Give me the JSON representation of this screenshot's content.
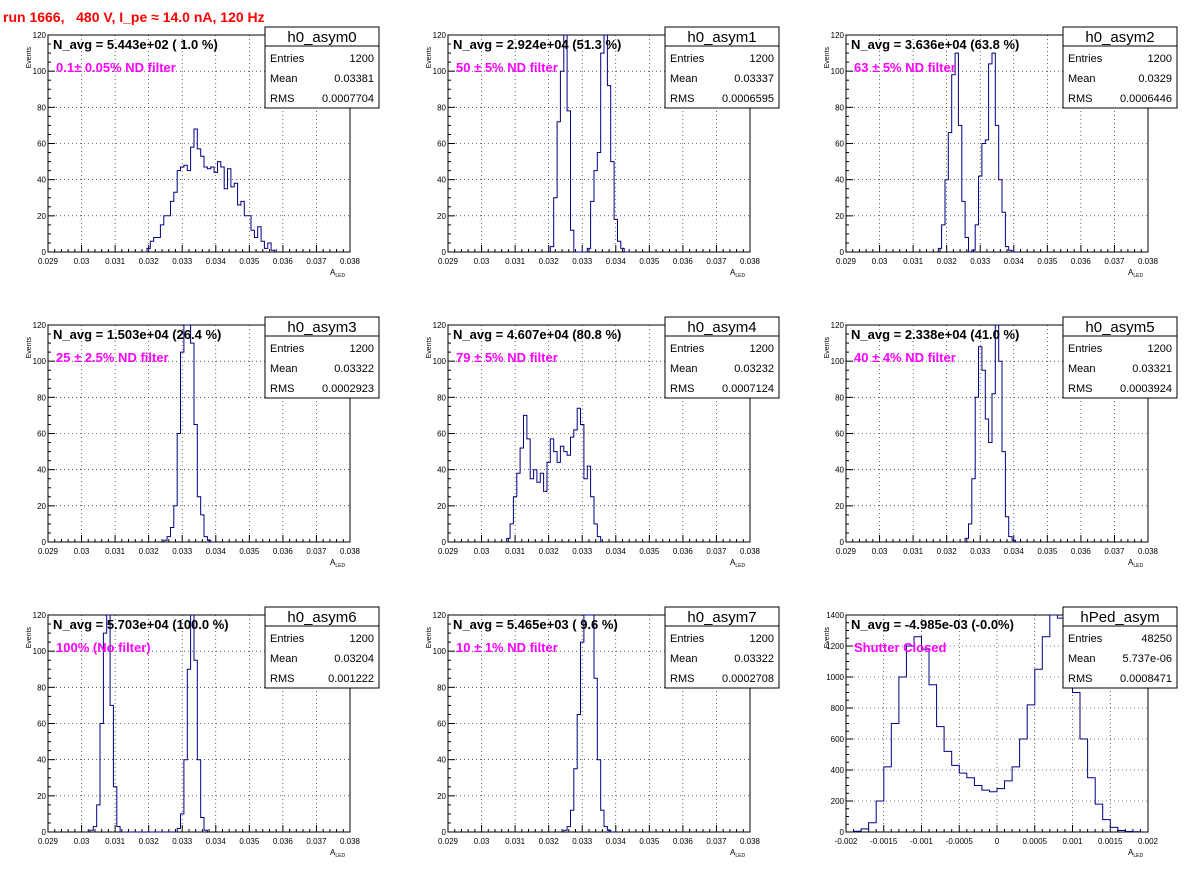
{
  "header": {
    "title": "run 1666,   480 V, I_pe ≈ 14.0 nA, 120 Hz"
  },
  "colors": {
    "title": "#ff0000",
    "filter_label": "#ff00ff",
    "histogram_line": "#000080",
    "axis": "#000000"
  },
  "chart_data": [
    {
      "type": "histogram",
      "name": "h0_asym0",
      "stats": {
        "Entries": "1200",
        "Mean": "0.03381",
        "RMS": "0.0007704"
      },
      "navg_label": "N_avg = 5.443e+02 ( 1.0 %)",
      "filter_label": "0.1± 0.05% ND filter",
      "xlabel": "A_LED",
      "ylabel": "Events",
      "xlim": [
        0.029,
        0.038
      ],
      "ylim": [
        0,
        120
      ],
      "xticks": [
        "0.029",
        "0.03",
        "0.031",
        "0.032",
        "0.033",
        "0.034",
        "0.035",
        "0.036",
        "0.037",
        "0.038"
      ],
      "yticks": [
        "0",
        "20",
        "40",
        "60",
        "80",
        "100",
        "120"
      ],
      "x": [
        0.032,
        0.0321,
        0.0322,
        0.0323,
        0.0324,
        0.0325,
        0.0326,
        0.0327,
        0.0328,
        0.0329,
        0.033,
        0.0331,
        0.0332,
        0.0333,
        0.0334,
        0.0335,
        0.0336,
        0.0337,
        0.0338,
        0.0339,
        0.034,
        0.0341,
        0.0342,
        0.0343,
        0.0344,
        0.0345,
        0.0346,
        0.0347,
        0.0348,
        0.0349,
        0.035,
        0.0351,
        0.0352,
        0.0353,
        0.0354,
        0.0355,
        0.0356,
        0.0357
      ],
      "y": [
        2,
        6,
        8,
        8,
        15,
        20,
        20,
        28,
        33,
        45,
        47,
        48,
        45,
        58,
        68,
        57,
        53,
        47,
        46,
        47,
        44,
        50,
        47,
        35,
        46,
        36,
        38,
        26,
        28,
        20,
        20,
        12,
        8,
        14,
        6,
        2,
        5,
        1
      ]
    },
    {
      "type": "histogram",
      "name": "h0_asym1",
      "stats": {
        "Entries": "1200",
        "Mean": "0.03337",
        "RMS": "0.0006595"
      },
      "navg_label": "N_avg = 2.924e+04 (51.3 %)",
      "filter_label": "50 ± 5% ND filter",
      "xlabel": "A_LED",
      "ylabel": "Events",
      "xlim": [
        0.029,
        0.038
      ],
      "ylim": [
        0,
        120
      ],
      "xticks": [
        "0.029",
        "0.03",
        "0.031",
        "0.032",
        "0.033",
        "0.034",
        "0.035",
        "0.036",
        "0.037",
        "0.038"
      ],
      "yticks": [
        "0",
        "20",
        "40",
        "60",
        "80",
        "100",
        "120"
      ],
      "x": [
        0.0321,
        0.0322,
        0.0323,
        0.0324,
        0.0325,
        0.0326,
        0.0327,
        0.0328,
        0.0329,
        0.033,
        0.0331,
        0.0332,
        0.0333,
        0.0334,
        0.0335,
        0.0336,
        0.0337,
        0.0338,
        0.0339,
        0.034,
        0.0341,
        0.0342,
        0.0343,
        0.0344
      ],
      "y": [
        3,
        30,
        72,
        100,
        125,
        78,
        12,
        0,
        0,
        0,
        0,
        2,
        28,
        45,
        55,
        110,
        125,
        92,
        50,
        18,
        6,
        2,
        0,
        0
      ]
    },
    {
      "type": "histogram",
      "name": "h0_asym2",
      "stats": {
        "Entries": "1200",
        "Mean": "0.0329",
        "RMS": "0.0006446"
      },
      "navg_label": "N_avg = 3.636e+04 (63.8 %)",
      "filter_label": "63 ± 5% ND filter",
      "xlabel": "A_LED",
      "ylabel": "Events",
      "xlim": [
        0.029,
        0.038
      ],
      "ylim": [
        0,
        120
      ],
      "xticks": [
        "0.029",
        "0.03",
        "0.031",
        "0.032",
        "0.033",
        "0.034",
        "0.035",
        "0.036",
        "0.037",
        "0.038"
      ],
      "yticks": [
        "0",
        "20",
        "40",
        "60",
        "80",
        "100",
        "120"
      ],
      "x": [
        0.0318,
        0.0319,
        0.032,
        0.0321,
        0.0322,
        0.0323,
        0.0324,
        0.0325,
        0.0326,
        0.0327,
        0.0328,
        0.0329,
        0.033,
        0.0331,
        0.0332,
        0.0333,
        0.0334,
        0.0335,
        0.0336,
        0.0337,
        0.0338,
        0.0339,
        0.034,
        0.0341
      ],
      "y": [
        2,
        15,
        40,
        66,
        98,
        110,
        70,
        28,
        8,
        0,
        1,
        15,
        42,
        60,
        62,
        104,
        110,
        70,
        40,
        22,
        3,
        1,
        0,
        0
      ]
    },
    {
      "type": "histogram",
      "name": "h0_asym3",
      "stats": {
        "Entries": "1200",
        "Mean": "0.03322",
        "RMS": "0.0002923"
      },
      "navg_label": "N_avg = 1.503e+04 (26.4 %)",
      "filter_label": "25 ± 2.5% ND filter",
      "xlabel": "A_LED",
      "ylabel": "Events",
      "xlim": [
        0.029,
        0.038
      ],
      "ylim": [
        0,
        120
      ],
      "xticks": [
        "0.029",
        "0.03",
        "0.031",
        "0.032",
        "0.033",
        "0.034",
        "0.035",
        "0.036",
        "0.037",
        "0.038"
      ],
      "yticks": [
        "0",
        "20",
        "40",
        "60",
        "80",
        "100",
        "120"
      ],
      "x": [
        0.0325,
        0.0326,
        0.0327,
        0.0328,
        0.0329,
        0.033,
        0.0331,
        0.0332,
        0.0333,
        0.0334,
        0.0335,
        0.0336,
        0.0337,
        0.0338,
        0.0339
      ],
      "y": [
        1,
        3,
        8,
        20,
        60,
        105,
        130,
        130,
        110,
        65,
        25,
        15,
        3,
        1,
        0
      ]
    },
    {
      "type": "histogram",
      "name": "h0_asym4",
      "stats": {
        "Entries": "1200",
        "Mean": "0.03232",
        "RMS": "0.0007124"
      },
      "navg_label": "N_avg = 4.607e+04 (80.8 %)",
      "filter_label": "79 ± 5% ND filter",
      "xlabel": "A_LED",
      "ylabel": "Events",
      "xlim": [
        0.029,
        0.038
      ],
      "ylim": [
        0,
        120
      ],
      "xticks": [
        "0.029",
        "0.03",
        "0.031",
        "0.032",
        "0.033",
        "0.034",
        "0.035",
        "0.036",
        "0.037",
        "0.038"
      ],
      "yticks": [
        "0",
        "20",
        "40",
        "60",
        "80",
        "100",
        "120"
      ],
      "x": [
        0.0308,
        0.0309,
        0.031,
        0.0311,
        0.0312,
        0.0313,
        0.0314,
        0.0315,
        0.0316,
        0.0317,
        0.0318,
        0.0319,
        0.032,
        0.0321,
        0.0322,
        0.0323,
        0.0324,
        0.0325,
        0.0326,
        0.0327,
        0.0328,
        0.0329,
        0.033,
        0.0331,
        0.0332,
        0.0333,
        0.0334,
        0.0335,
        0.0336
      ],
      "y": [
        2,
        10,
        25,
        38,
        52,
        70,
        57,
        35,
        40,
        33,
        38,
        28,
        44,
        57,
        50,
        44,
        53,
        50,
        48,
        58,
        62,
        74,
        65,
        35,
        42,
        25,
        10,
        3,
        0
      ]
    },
    {
      "type": "histogram",
      "name": "h0_asym5",
      "stats": {
        "Entries": "1200",
        "Mean": "0.03321",
        "RMS": "0.0003924"
      },
      "navg_label": "N_avg = 2.338e+04 (41.0 %)",
      "filter_label": "40 ± 4% ND filter",
      "xlabel": "A_LED",
      "ylabel": "Events",
      "xlim": [
        0.029,
        0.038
      ],
      "ylim": [
        0,
        120
      ],
      "xticks": [
        "0.029",
        "0.03",
        "0.031",
        "0.032",
        "0.033",
        "0.034",
        "0.035",
        "0.036",
        "0.037",
        "0.038"
      ],
      "yticks": [
        "0",
        "20",
        "40",
        "60",
        "80",
        "100",
        "120"
      ],
      "x": [
        0.0326,
        0.0327,
        0.0328,
        0.0329,
        0.033,
        0.0331,
        0.0332,
        0.0333,
        0.0334,
        0.0335,
        0.0336,
        0.0337,
        0.0338,
        0.0339,
        0.034,
        0.0341
      ],
      "y": [
        2,
        10,
        35,
        80,
        108,
        95,
        68,
        55,
        82,
        120,
        100,
        50,
        14,
        3,
        1,
        0
      ]
    },
    {
      "type": "histogram",
      "name": "h0_asym6",
      "stats": {
        "Entries": "1200",
        "Mean": "0.03204",
        "RMS": "0.001222"
      },
      "navg_label": "N_avg = 5.703e+04 (100.0 %)",
      "filter_label": "100% (No filter)",
      "xlabel": "A_LED",
      "ylabel": "Events",
      "xlim": [
        0.029,
        0.038
      ],
      "ylim": [
        0,
        120
      ],
      "xticks": [
        "0.029",
        "0.03",
        "0.031",
        "0.032",
        "0.033",
        "0.034",
        "0.035",
        "0.036",
        "0.037",
        "0.038"
      ],
      "yticks": [
        "0",
        "20",
        "40",
        "60",
        "80",
        "100",
        "120"
      ],
      "x": [
        0.0303,
        0.0304,
        0.0305,
        0.0306,
        0.0307,
        0.0308,
        0.0309,
        0.031,
        0.0311,
        0.0312,
        0.0313,
        0.0314,
        0.0315,
        0.0316,
        0.0317,
        0.0318,
        0.0319,
        0.032,
        0.0321,
        0.0322,
        0.0323,
        0.0324,
        0.0325,
        0.0326,
        0.0327,
        0.0328,
        0.0329,
        0.033,
        0.0331,
        0.0332,
        0.0333,
        0.0334,
        0.0335,
        0.0336,
        0.0337
      ],
      "y": [
        1,
        3,
        15,
        60,
        110,
        125,
        70,
        25,
        3,
        0,
        0,
        0,
        0,
        0,
        0,
        0,
        0,
        0,
        0,
        0,
        0,
        0,
        0,
        0,
        0,
        0,
        2,
        10,
        40,
        90,
        120,
        95,
        40,
        8,
        1
      ]
    },
    {
      "type": "histogram",
      "name": "h0_asym7",
      "stats": {
        "Entries": "1200",
        "Mean": "0.03322",
        "RMS": "0.0002708"
      },
      "navg_label": "N_avg = 5.465e+03 ( 9.6 %)",
      "filter_label": "10 ± 1% ND filter",
      "xlabel": "A_LED",
      "ylabel": "Events",
      "xlim": [
        0.029,
        0.038
      ],
      "ylim": [
        0,
        120
      ],
      "xticks": [
        "0.029",
        "0.03",
        "0.031",
        "0.032",
        "0.033",
        "0.034",
        "0.035",
        "0.036",
        "0.037",
        "0.038"
      ],
      "yticks": [
        "0",
        "20",
        "40",
        "60",
        "80",
        "100",
        "120"
      ],
      "x": [
        0.0325,
        0.0326,
        0.0327,
        0.0328,
        0.0329,
        0.033,
        0.0331,
        0.0332,
        0.0333,
        0.0334,
        0.0335,
        0.0336,
        0.0337,
        0.0338,
        0.0339,
        0.034
      ],
      "y": [
        1,
        3,
        12,
        35,
        65,
        105,
        130,
        130,
        120,
        85,
        40,
        12,
        3,
        1,
        0,
        0
      ]
    },
    {
      "type": "histogram",
      "name": "hPed_asym",
      "stats": {
        "Entries": "48250",
        "Mean": "5.737e-06",
        "RMS": "0.0008471"
      },
      "navg_label": "N_avg = -4.985e-03 (-0.0%)",
      "filter_label": "Shutter Closed",
      "xlabel": "A_LED",
      "ylabel": "Events",
      "xlim": [
        -0.002,
        0.002
      ],
      "ylim": [
        0,
        1400
      ],
      "xticks": [
        "-0.002",
        "-0.0015",
        "-0.001",
        "-0.0005",
        "0",
        "0.0005",
        "0.001",
        "0.0015",
        "0.002"
      ],
      "yticks": [
        "0",
        "200",
        "400",
        "600",
        "800",
        "1000",
        "1200",
        "1400"
      ],
      "x": [
        -0.00185,
        -0.00175,
        -0.00165,
        -0.00155,
        -0.00145,
        -0.00135,
        -0.00125,
        -0.00115,
        -0.00105,
        -0.00095,
        -0.00085,
        -0.00075,
        -0.00065,
        -0.00055,
        -0.00045,
        -0.00035,
        -0.00025,
        -0.00015,
        -5e-05,
        5e-05,
        0.00015,
        0.00025,
        0.00035,
        0.00045,
        0.00055,
        0.00065,
        0.00075,
        0.00085,
        0.00095,
        0.00105,
        0.00115,
        0.00125,
        0.00135,
        0.00145,
        0.00155,
        0.00165,
        0.00175,
        0.00185
      ],
      "y": [
        5,
        20,
        60,
        200,
        420,
        700,
        1000,
        1200,
        1260,
        1180,
        950,
        680,
        520,
        430,
        380,
        350,
        300,
        270,
        260,
        280,
        330,
        420,
        600,
        820,
        1050,
        1260,
        1400,
        1380,
        1200,
        900,
        600,
        350,
        180,
        80,
        30,
        10,
        3,
        1
      ]
    }
  ]
}
